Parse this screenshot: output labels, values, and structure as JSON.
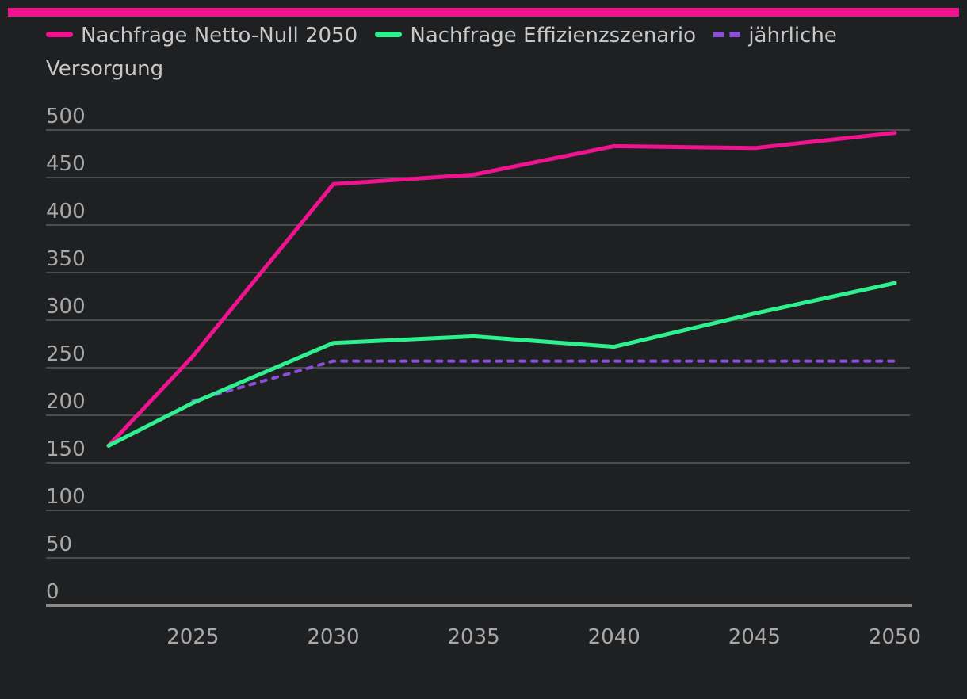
{
  "chart_data": {
    "type": "line",
    "title": "",
    "xlabel": "",
    "ylabel": "",
    "x_ticks": [
      "2025",
      "2030",
      "2035",
      "2040",
      "2045",
      "2050"
    ],
    "y_ticks": [
      "0",
      "50",
      "100",
      "150",
      "200",
      "250",
      "300",
      "350",
      "400",
      "450",
      "500"
    ],
    "xlim": [
      2022,
      2050
    ],
    "ylim": [
      0,
      500
    ],
    "grid": true,
    "legend": "top-left",
    "series": [
      {
        "name": "Nachfrage Netto-Null 2050",
        "color": "#ef138f",
        "style": "solid",
        "x": [
          2022,
          2025,
          2030,
          2035,
          2040,
          2045,
          2050
        ],
        "values": [
          168,
          262,
          443,
          453,
          483,
          481,
          497
        ]
      },
      {
        "name": "Nachfrage Effizienzszenario",
        "color": "#2ef08e",
        "style": "solid",
        "x": [
          2022,
          2025,
          2030,
          2035,
          2040,
          2045,
          2050
        ],
        "values": [
          168,
          213,
          276,
          283,
          272,
          307,
          339
        ]
      },
      {
        "name": "jährliche Versorgung",
        "color": "#8b4fd8",
        "style": "dashed",
        "x": [
          2025,
          2030,
          2035,
          2040,
          2045,
          2050
        ],
        "values": [
          215,
          257,
          257,
          257,
          257,
          257
        ]
      }
    ]
  }
}
